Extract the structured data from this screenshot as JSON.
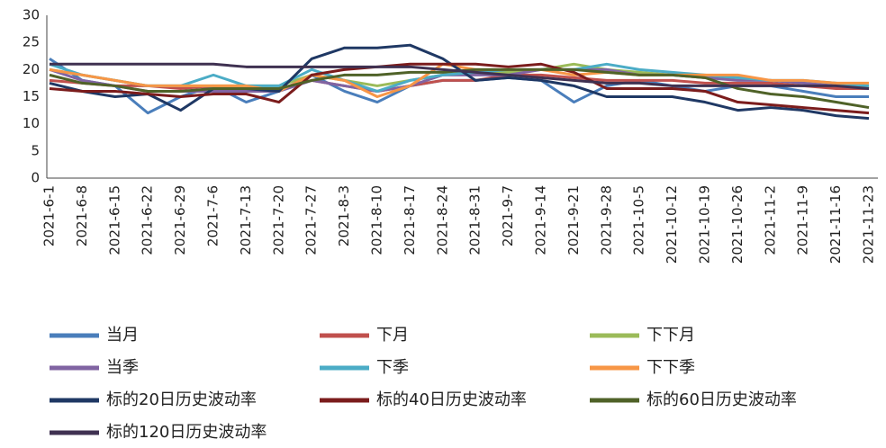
{
  "chart_data": {
    "type": "line",
    "categories": [
      "2021-6-1",
      "2021-6-8",
      "2021-6-15",
      "2021-6-22",
      "2021-6-29",
      "2021-7-6",
      "2021-7-13",
      "2021-7-20",
      "2021-7-27",
      "2021-8-3",
      "2021-8-10",
      "2021-8-17",
      "2021-8-24",
      "2021-8-31",
      "2021-9-7",
      "2021-9-14",
      "2021-9-21",
      "2021-9-28",
      "2021-10-5",
      "2021-10-12",
      "2021-10-19",
      "2021-10-26",
      "2021-11-2",
      "2021-11-9",
      "2021-11-16",
      "2021-11-23"
    ],
    "ylim": [
      0,
      30
    ],
    "yticks": [
      0,
      5,
      10,
      15,
      20,
      25,
      30
    ],
    "series": [
      {
        "name": "当月",
        "color": "#4a7ebb",
        "values": [
          22,
          18,
          17,
          12,
          15,
          17,
          14,
          16,
          19,
          16,
          14,
          17,
          18,
          18,
          18.5,
          18,
          14,
          17,
          18,
          17,
          16,
          17,
          17,
          16,
          15,
          15
        ]
      },
      {
        "name": "下月",
        "color": "#c0504d",
        "values": [
          18,
          17.5,
          17,
          17,
          16.5,
          17,
          16.5,
          16.5,
          18,
          17,
          16,
          17,
          18,
          18,
          19,
          19,
          18.5,
          18,
          18,
          18,
          17.5,
          17.5,
          17.5,
          17,
          16.5,
          16.5
        ]
      },
      {
        "name": "下下月",
        "color": "#9bbb59",
        "values": [
          20,
          19,
          18,
          17,
          17,
          17,
          17,
          17,
          19,
          18,
          17,
          18,
          19,
          19.5,
          19.5,
          20,
          21,
          20,
          19.5,
          19,
          18.5,
          18.5,
          18,
          17.5,
          17,
          17
        ]
      },
      {
        "name": "当季",
        "color": "#8064a2",
        "values": [
          20,
          18,
          17,
          16,
          16,
          16,
          16,
          16,
          18,
          17,
          16,
          17,
          19,
          19,
          19,
          20,
          20,
          20,
          19,
          19,
          18.5,
          18,
          18,
          17.5,
          17,
          16.5
        ]
      },
      {
        "name": "下季",
        "color": "#4bacc6",
        "values": [
          21,
          19,
          18,
          17,
          17,
          19,
          17,
          17,
          20,
          18,
          16,
          18,
          19,
          19.5,
          20,
          20,
          20,
          21,
          20,
          19.5,
          19,
          18.5,
          18,
          18,
          17.5,
          17
        ]
      },
      {
        "name": "下下季",
        "color": "#f79646",
        "values": [
          20,
          19,
          18,
          17,
          17,
          17,
          17,
          16,
          19,
          18,
          15,
          17,
          21,
          20,
          20,
          20,
          19,
          19.5,
          19,
          19,
          19,
          19,
          18,
          18,
          17.5,
          17.5
        ]
      },
      {
        "name": "标的20日历史波动率",
        "color": "#1f3864",
        "values": [
          17.5,
          16,
          15,
          15.5,
          12.5,
          16.5,
          16.5,
          16,
          22,
          24,
          24,
          24.5,
          22,
          18,
          18.5,
          18,
          17,
          15,
          15,
          15,
          14,
          12.5,
          13,
          12.5,
          11.5,
          11
        ]
      },
      {
        "name": "标的40日历史波动率",
        "color": "#7b1c1c",
        "values": [
          16.5,
          16,
          16,
          15.5,
          15,
          15.5,
          15.5,
          14,
          19,
          20,
          20.5,
          21,
          21,
          21,
          20.5,
          21,
          19.5,
          16.5,
          16.5,
          16.5,
          16,
          14,
          13.5,
          13,
          12.5,
          12
        ]
      },
      {
        "name": "标的60日历史波动率",
        "color": "#4f6228",
        "values": [
          19,
          17.5,
          17,
          16,
          16,
          16.5,
          16.5,
          16.5,
          18,
          19,
          19,
          19.5,
          19.5,
          20,
          20,
          20,
          20,
          19.5,
          19,
          19,
          18.5,
          16.5,
          15.5,
          15,
          14,
          13
        ]
      },
      {
        "name": "标的120日历史波动率",
        "color": "#3f3151",
        "values": [
          21,
          21,
          21,
          21,
          21,
          21,
          20.5,
          20.5,
          20.5,
          20.5,
          20.5,
          20.5,
          20,
          19.5,
          19,
          18.5,
          18,
          17.5,
          17.5,
          17,
          17,
          17,
          17,
          17,
          17,
          16.5
        ]
      }
    ]
  }
}
